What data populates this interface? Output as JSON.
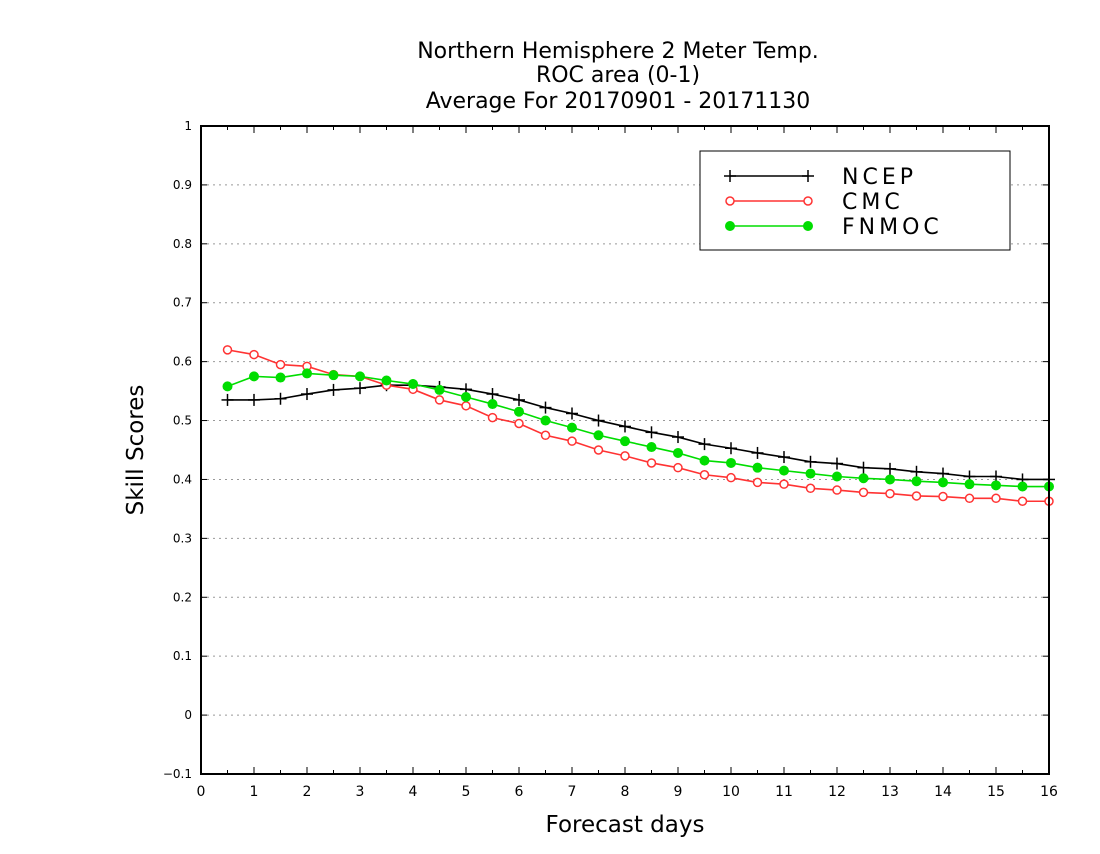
{
  "chart_data": {
    "type": "line",
    "title_lines": [
      "Northern Hemisphere 2 Meter Temp.",
      "ROC area (0-1)",
      "Average For 20170901 - 20171130"
    ],
    "xlabel": "Forecast days",
    "ylabel": "Skill Scores",
    "xlim": [
      0,
      16
    ],
    "ylim": [
      -0.1,
      1
    ],
    "x_ticks": [
      0,
      1,
      2,
      3,
      4,
      5,
      6,
      7,
      8,
      9,
      10,
      11,
      12,
      13,
      14,
      15,
      16
    ],
    "x_tick_labels": [
      "0",
      "1",
      "2",
      "3",
      "4",
      "5",
      "6",
      "7",
      "8",
      "9",
      "10",
      "11",
      "12",
      "13",
      "14",
      "15",
      "16"
    ],
    "y_ticks": [
      -0.1,
      0,
      0.1,
      0.2,
      0.3,
      0.4,
      0.5,
      0.6,
      0.7,
      0.8,
      0.9,
      1
    ],
    "y_tick_labels": [
      "−0.1",
      "0",
      "0.1",
      "0.2",
      "0.3",
      "0.4",
      "0.5",
      "0.6",
      "0.7",
      "0.8",
      "0.9",
      "1"
    ],
    "grid": "horizontal dotted",
    "legend_position": "top-right",
    "x": [
      0.5,
      1,
      1.5,
      2,
      2.5,
      3,
      3.5,
      4,
      4.5,
      5,
      5.5,
      6,
      6.5,
      7,
      7.5,
      8,
      8.5,
      9,
      9.5,
      10,
      10.5,
      11,
      11.5,
      12,
      12.5,
      13,
      13.5,
      14,
      14.5,
      15,
      15.5,
      16
    ],
    "series": [
      {
        "name": "NCEP",
        "color": "#000000",
        "marker": "plus",
        "values": [
          0.535,
          0.535,
          0.537,
          0.545,
          0.552,
          0.555,
          0.56,
          0.56,
          0.557,
          0.553,
          0.545,
          0.535,
          0.522,
          0.512,
          0.5,
          0.49,
          0.48,
          0.472,
          0.46,
          0.453,
          0.445,
          0.438,
          0.43,
          0.427,
          0.42,
          0.418,
          0.413,
          0.41,
          0.405,
          0.405,
          0.4,
          0.4
        ]
      },
      {
        "name": "CMC",
        "color": "#ff3333",
        "marker": "open-circle",
        "values": [
          0.62,
          0.612,
          0.595,
          0.592,
          0.578,
          0.575,
          0.56,
          0.553,
          0.535,
          0.525,
          0.505,
          0.495,
          0.475,
          0.465,
          0.45,
          0.44,
          0.428,
          0.42,
          0.408,
          0.403,
          0.395,
          0.392,
          0.385,
          0.382,
          0.378,
          0.376,
          0.372,
          0.371,
          0.368,
          0.368,
          0.363,
          0.363
        ]
      },
      {
        "name": "FNMOC",
        "color": "#00dd00",
        "marker": "filled-circle",
        "values": [
          0.558,
          0.575,
          0.573,
          0.58,
          0.577,
          0.575,
          0.568,
          0.562,
          0.552,
          0.54,
          0.528,
          0.515,
          0.5,
          0.488,
          0.475,
          0.465,
          0.455,
          0.445,
          0.432,
          0.428,
          0.42,
          0.415,
          0.41,
          0.405,
          0.402,
          0.4,
          0.397,
          0.395,
          0.392,
          0.39,
          0.388,
          0.388
        ]
      }
    ]
  }
}
